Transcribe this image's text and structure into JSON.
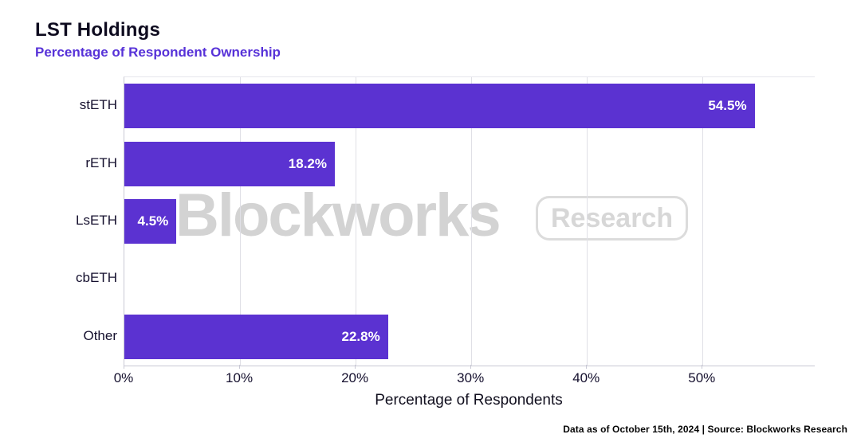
{
  "header": {
    "title": "LST Holdings",
    "subtitle": "Percentage of Respondent Ownership"
  },
  "watermark": {
    "brand": "Blockworks",
    "badge": "Research"
  },
  "footer": {
    "note": "Data as of October 15th, 2024 | Source: Blockworks Research"
  },
  "colors": {
    "bar": "#5b32d1",
    "subtitle": "#5732d8",
    "title": "#0e0b1f",
    "gridline": "#e0e0e6",
    "axis_spine": "#c8c8d4",
    "value_label": "#ffffff",
    "watermark": "#d3d3d3",
    "background": "#ffffff"
  },
  "chart_data": {
    "type": "bar",
    "orientation": "horizontal",
    "title": "LST Holdings",
    "subtitle": "Percentage of Respondent Ownership",
    "categories": [
      "stETH",
      "rETH",
      "LsETH",
      "cbETH",
      "Other"
    ],
    "values": [
      54.5,
      18.2,
      4.5,
      0,
      22.8
    ],
    "value_labels": [
      "54.5%",
      "18.2%",
      "4.5%",
      "",
      "22.8%"
    ],
    "xlabel": "Percentage of Respondents",
    "ylabel": "",
    "xlim": [
      0,
      59.7
    ],
    "ticks": [
      0,
      10,
      20,
      30,
      40,
      50
    ],
    "tick_labels": [
      "0%",
      "10%",
      "20%",
      "30%",
      "40%",
      "50%"
    ],
    "grid": "vertical-only",
    "legend": "none",
    "bar_color": "#5b32d1"
  }
}
